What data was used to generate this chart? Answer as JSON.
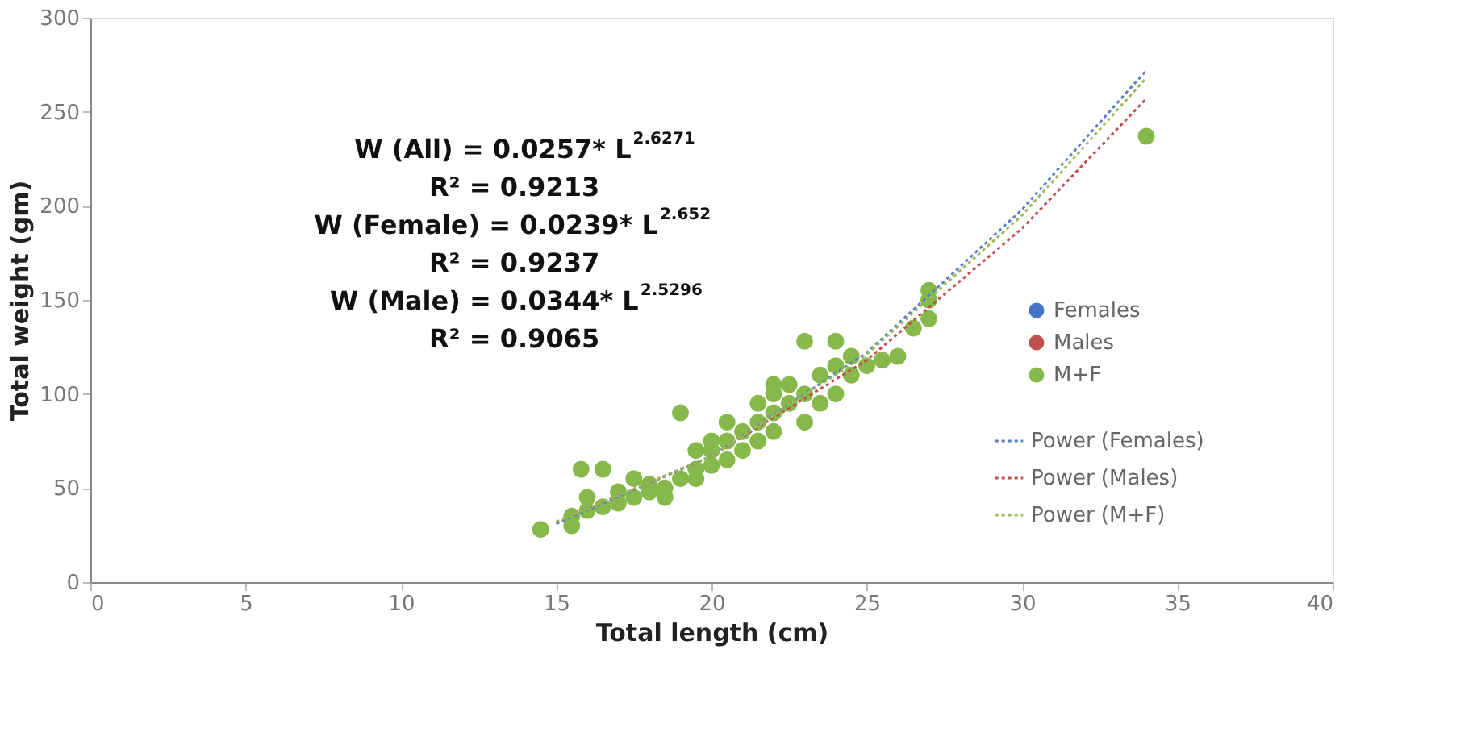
{
  "chart_data": {
    "type": "scatter",
    "xlabel": "Total length (cm)",
    "ylabel": "Total weight (gm)",
    "xlim": [
      0,
      40
    ],
    "xticks": [
      0,
      5,
      10,
      15,
      20,
      25,
      30,
      35,
      40
    ],
    "ylim": [
      0,
      300
    ],
    "yticks": [
      0,
      50,
      100,
      150,
      200,
      250,
      300
    ],
    "grid": false,
    "legend": "right",
    "annotations": [
      "W (All) = 0.0257* L$^{2.6271}$",
      "R² = 0.9213",
      "W (Female) = 0.0239* L$^{2.652}$",
      "R² = 0.9237",
      "W (Male) = 0.0344* L$^{2.5296}$",
      "R² = 0.9065"
    ],
    "series": [
      {
        "name": "Females",
        "marker": "circle",
        "color": "#4472c4"
      },
      {
        "name": "Males",
        "marker": "circle",
        "color": "#c0504d"
      },
      {
        "name": "M+F",
        "marker": "circle",
        "color": "#86b84c",
        "x": [
          14.5,
          15.5,
          15.5,
          15.8,
          16.5,
          16,
          16,
          16.5,
          17,
          17,
          17.5,
          17.5,
          18,
          18,
          18.5,
          18.5,
          19,
          19,
          19.5,
          19.5,
          19.5,
          20,
          20,
          20,
          20.5,
          20.5,
          20.5,
          21,
          21,
          21.5,
          21.5,
          21.5,
          22,
          22,
          22,
          22,
          22.5,
          22.5,
          23,
          23,
          23,
          23.5,
          23.5,
          24,
          24,
          24,
          24.5,
          24.5,
          25,
          25.5,
          26,
          26.5,
          27,
          27,
          27,
          34
        ],
        "values": [
          28,
          30,
          35,
          60,
          60,
          38,
          45,
          40,
          42,
          48,
          45,
          55,
          48,
          52,
          50,
          45,
          55,
          90,
          60,
          55,
          70,
          62,
          70,
          75,
          65,
          75,
          85,
          70,
          80,
          75,
          85,
          95,
          80,
          90,
          100,
          105,
          95,
          105,
          128,
          100,
          85,
          110,
          95,
          100,
          115,
          128,
          120,
          110,
          115,
          118,
          120,
          135,
          140,
          150,
          155,
          237
        ]
      },
      {
        "name": "Power (Females)",
        "type": "line",
        "marker": "none",
        "line_style": "dotted",
        "color": "#5b7fc4",
        "x": [
          15,
          20,
          25,
          30,
          34
        ],
        "values": [
          31,
          67,
          122,
          198,
          272
        ]
      },
      {
        "name": "Power (Males)",
        "type": "line",
        "marker": "none",
        "line_style": "dotted",
        "color": "#c0504d",
        "x": [
          15,
          20,
          25,
          30,
          34
        ],
        "values": [
          32,
          67,
          118,
          188,
          257
        ]
      },
      {
        "name": "Power (M+F)",
        "type": "line",
        "marker": "none",
        "line_style": "dotted",
        "color": "#9bbb59",
        "x": [
          15,
          20,
          25,
          30,
          34
        ],
        "values": [
          32,
          67,
          121,
          195,
          268
        ]
      }
    ]
  }
}
